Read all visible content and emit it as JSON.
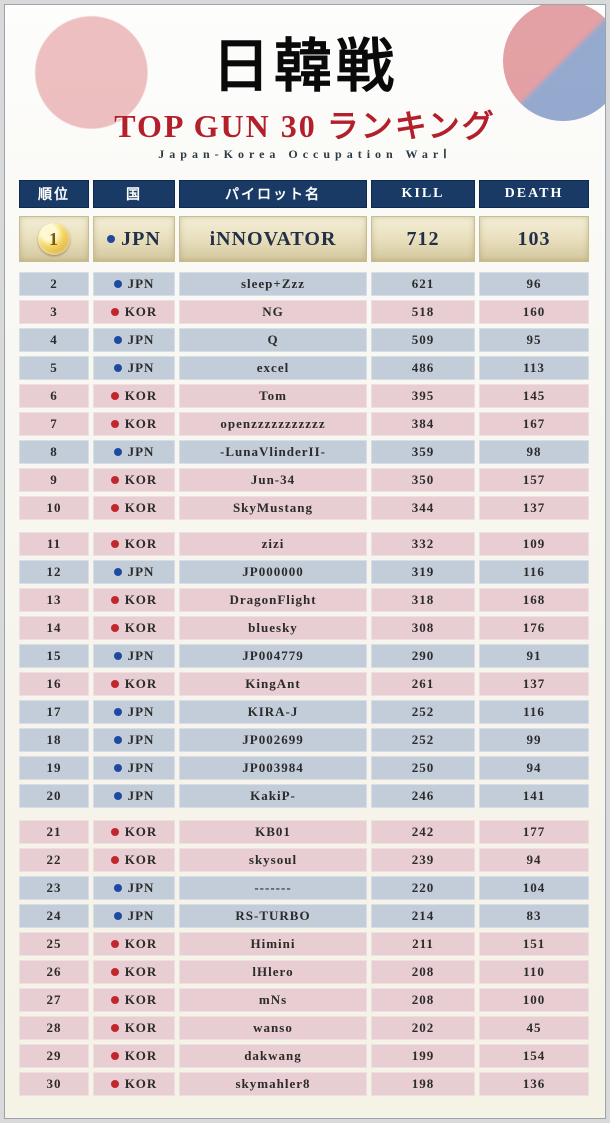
{
  "header": {
    "title_jp": "日韓戦",
    "title_en": "TOP GUN 30 ランキング",
    "subtitle": "Japan-Korea Occupation WarⅠ"
  },
  "columns": {
    "rank": "順位",
    "country": "国",
    "pilot": "パイロット名",
    "kill": "KILL",
    "death": "DEATH"
  },
  "country_labels": {
    "JPN": "JPN",
    "KOR": "KOR"
  },
  "colors": {
    "header_bg": "#193a65",
    "accent_red": "#b3202b",
    "row_jp": "#c3cdd9",
    "row_kr": "#e8ced2",
    "dot_jp": "#1d4aa0",
    "dot_kr": "#c1272d",
    "gold_badge": "#f5d766"
  },
  "section_breaks_after": [
    10,
    20
  ],
  "rows": [
    {
      "rank": 1,
      "country": "JPN",
      "pilot": "iNNOVATOR",
      "kill": 712,
      "death": 103
    },
    {
      "rank": 2,
      "country": "JPN",
      "pilot": "sleep+Zzz",
      "kill": 621,
      "death": 96
    },
    {
      "rank": 3,
      "country": "KOR",
      "pilot": "NG",
      "kill": 518,
      "death": 160
    },
    {
      "rank": 4,
      "country": "JPN",
      "pilot": "Q",
      "kill": 509,
      "death": 95
    },
    {
      "rank": 5,
      "country": "JPN",
      "pilot": "excel",
      "kill": 486,
      "death": 113
    },
    {
      "rank": 6,
      "country": "KOR",
      "pilot": "Tom",
      "kill": 395,
      "death": 145
    },
    {
      "rank": 7,
      "country": "KOR",
      "pilot": "openzzzzzzzzzzz",
      "kill": 384,
      "death": 167
    },
    {
      "rank": 8,
      "country": "JPN",
      "pilot": "-LunaVlinderII-",
      "kill": 359,
      "death": 98
    },
    {
      "rank": 9,
      "country": "KOR",
      "pilot": "Jun-34",
      "kill": 350,
      "death": 157
    },
    {
      "rank": 10,
      "country": "KOR",
      "pilot": "SkyMustang",
      "kill": 344,
      "death": 137
    },
    {
      "rank": 11,
      "country": "KOR",
      "pilot": "zizi",
      "kill": 332,
      "death": 109
    },
    {
      "rank": 12,
      "country": "JPN",
      "pilot": "JP000000",
      "kill": 319,
      "death": 116
    },
    {
      "rank": 13,
      "country": "KOR",
      "pilot": "DragonFlight",
      "kill": 318,
      "death": 168
    },
    {
      "rank": 14,
      "country": "KOR",
      "pilot": "bluesky",
      "kill": 308,
      "death": 176
    },
    {
      "rank": 15,
      "country": "JPN",
      "pilot": "JP004779",
      "kill": 290,
      "death": 91
    },
    {
      "rank": 16,
      "country": "KOR",
      "pilot": "KingAnt",
      "kill": 261,
      "death": 137
    },
    {
      "rank": 17,
      "country": "JPN",
      "pilot": "KIRA-J",
      "kill": 252,
      "death": 116
    },
    {
      "rank": 18,
      "country": "JPN",
      "pilot": "JP002699",
      "kill": 252,
      "death": 99
    },
    {
      "rank": 19,
      "country": "JPN",
      "pilot": "JP003984",
      "kill": 250,
      "death": 94
    },
    {
      "rank": 20,
      "country": "JPN",
      "pilot": "KakiP-",
      "kill": 246,
      "death": 141
    },
    {
      "rank": 21,
      "country": "KOR",
      "pilot": "KB01",
      "kill": 242,
      "death": 177
    },
    {
      "rank": 22,
      "country": "KOR",
      "pilot": "skysoul",
      "kill": 239,
      "death": 94
    },
    {
      "rank": 23,
      "country": "JPN",
      "pilot": "-------",
      "kill": 220,
      "death": 104
    },
    {
      "rank": 24,
      "country": "JPN",
      "pilot": "RS-TURBO",
      "kill": 214,
      "death": 83
    },
    {
      "rank": 25,
      "country": "KOR",
      "pilot": "Himini",
      "kill": 211,
      "death": 151
    },
    {
      "rank": 26,
      "country": "KOR",
      "pilot": "lHlero",
      "kill": 208,
      "death": 110
    },
    {
      "rank": 27,
      "country": "KOR",
      "pilot": "mNs",
      "kill": 208,
      "death": 100
    },
    {
      "rank": 28,
      "country": "KOR",
      "pilot": "wanso",
      "kill": 202,
      "death": 45
    },
    {
      "rank": 29,
      "country": "KOR",
      "pilot": "dakwang",
      "kill": 199,
      "death": 154
    },
    {
      "rank": 30,
      "country": "KOR",
      "pilot": "skymahler8",
      "kill": 198,
      "death": 136
    }
  ]
}
